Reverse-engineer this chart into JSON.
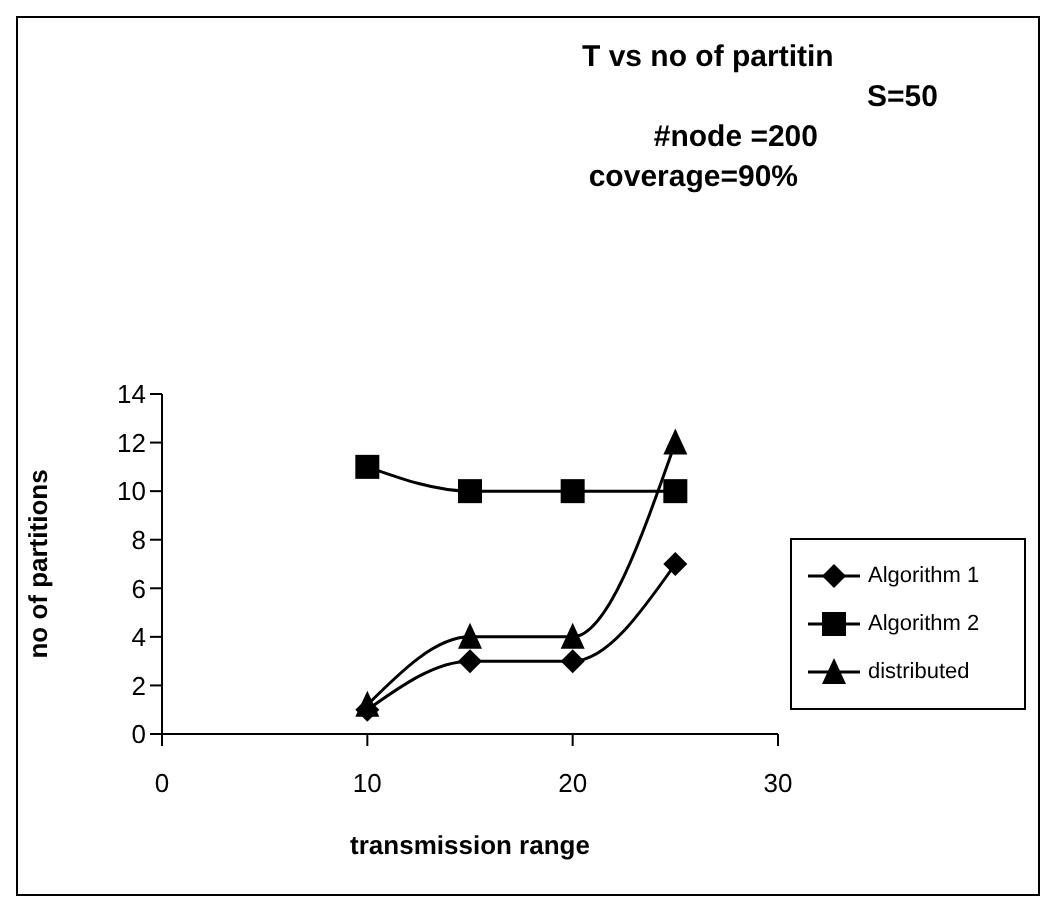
{
  "chart_data": {
    "type": "line",
    "title": "T vs no of partitin",
    "annotations": [
      "S=50",
      "#node =200",
      "coverage=90%"
    ],
    "xlabel": "transmission range",
    "ylabel": "no of partitions",
    "x": [
      10,
      15,
      20,
      25
    ],
    "series": [
      {
        "name": "Algorithm 1",
        "color": "#000000",
        "marker": "diamond",
        "values": [
          1,
          3,
          3,
          7
        ]
      },
      {
        "name": "Algorithm 2",
        "color": "#000000",
        "marker": "square",
        "values": [
          11,
          10,
          10,
          10
        ]
      },
      {
        "name": "distributed",
        "color": "#000000",
        "marker": "triangle",
        "values": [
          1.2,
          4,
          4,
          12
        ]
      }
    ],
    "xlim": [
      0,
      30
    ],
    "xticks": [
      0,
      10,
      20,
      30
    ],
    "ylim": [
      0,
      14
    ],
    "yticks": [
      0,
      2,
      4,
      6,
      8,
      10,
      12,
      14
    ],
    "grid": false,
    "legend": "right",
    "line_style": "solid"
  }
}
